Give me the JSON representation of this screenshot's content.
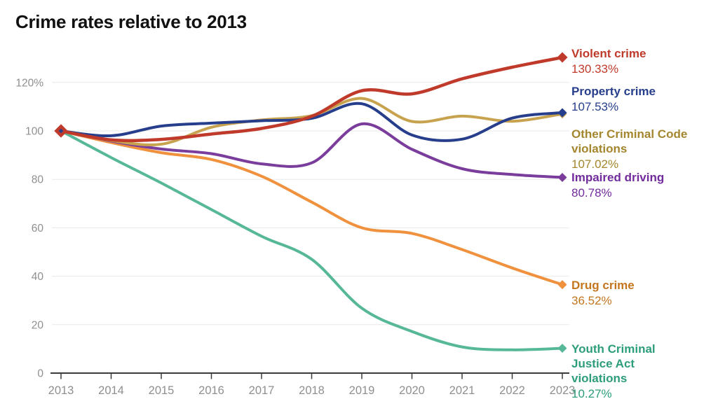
{
  "title": "Crime rates relative to 2013",
  "chart_data": {
    "type": "line",
    "title": "Crime rates relative to 2013",
    "xlabel": "",
    "ylabel": "",
    "baseline_year": 2013,
    "grid": true,
    "legend_position": "right",
    "x": [
      2013,
      2014,
      2015,
      2016,
      2017,
      2018,
      2019,
      2020,
      2021,
      2022,
      2023
    ],
    "x_tick_labels": [
      "2013",
      "2014",
      "2015",
      "2016",
      "2017",
      "2018",
      "2019",
      "2020",
      "2021",
      "2022",
      "2023"
    ],
    "y_ticks": [
      {
        "value": 0,
        "label": "0"
      },
      {
        "value": 20,
        "label": "20"
      },
      {
        "value": 40,
        "label": "40"
      },
      {
        "value": 60,
        "label": "60"
      },
      {
        "value": 80,
        "label": "80"
      },
      {
        "value": 100,
        "label": "100"
      },
      {
        "value": 120,
        "label": "120%"
      }
    ],
    "ylim": [
      0,
      134
    ],
    "series": [
      {
        "id": "violent-crime",
        "name": "Violent crime",
        "end_value_label": "130.33%",
        "end_value": 130.33,
        "color": "#c03a2b",
        "label_color": "#c03a2b",
        "values": [
          100,
          96.3,
          96.5,
          98.7,
          101,
          106,
          116.6,
          115.3,
          121.5,
          126.3,
          130.33
        ]
      },
      {
        "id": "property-crime",
        "name": "Property crime",
        "end_value_label": "107.53%",
        "end_value": 107.53,
        "color": "#263e8c",
        "label_color": "#263e8c",
        "values": [
          100,
          98,
          102,
          103.2,
          104.2,
          105.2,
          111.2,
          98.3,
          96.6,
          105.3,
          107.53
        ]
      },
      {
        "id": "other-criminal-code-violations",
        "name": "Other Criminal Code violations",
        "end_value_label": "107.02%",
        "end_value": 107.02,
        "color": "#c7a34f",
        "label_color": "#a3862e",
        "values": [
          100,
          96,
          94.5,
          101.5,
          104.5,
          106.3,
          113.4,
          103.9,
          106.1,
          104,
          107.02
        ]
      },
      {
        "id": "impaired-driving",
        "name": "Impaired driving",
        "end_value_label": "80.78%",
        "end_value": 80.78,
        "color": "#7a3d9c",
        "label_color": "#712b9c",
        "values": [
          100,
          95.8,
          92.5,
          90.6,
          86.4,
          86.8,
          102.9,
          92.4,
          84.4,
          82,
          80.78
        ]
      },
      {
        "id": "drug-crime",
        "name": "Drug crime",
        "end_value_label": "36.52%",
        "end_value": 36.52,
        "color": "#f0913e",
        "label_color": "#c4761f",
        "values": [
          100,
          95.2,
          91,
          88.2,
          81.3,
          70.6,
          60,
          57.7,
          51,
          43.4,
          36.52
        ]
      },
      {
        "id": "youth-criminal-justice-act-violations",
        "name": "Youth Criminal Justice Act violations",
        "end_value_label": "10.27%",
        "end_value": 10.27,
        "color": "#56b898",
        "label_color": "#2d9d7c",
        "values": [
          100,
          89,
          78.5,
          67.5,
          56.5,
          47,
          26.8,
          17.2,
          10.8,
          9.6,
          10.27
        ]
      }
    ],
    "start_marker": {
      "year": 2013,
      "value": 100,
      "fill": "#263e8c",
      "stroke": "#c03a2b"
    },
    "axis_color": "#3a3a3a",
    "grid_color": "#e9e9e9",
    "tick_label_color": "#8f8f8f"
  }
}
